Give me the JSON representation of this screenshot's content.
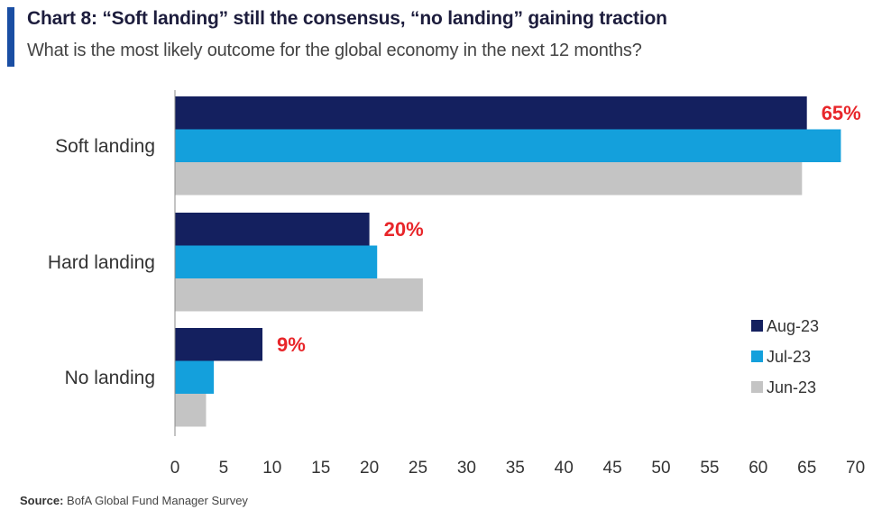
{
  "header": {
    "title": "Chart 8: “Soft landing” still the consensus, “no landing” gaining traction",
    "subtitle": "What is the most likely outcome for the global economy in the next 12 months?"
  },
  "footer": {
    "source_label": "Source:",
    "source_text": "BofA Global Fund Manager Survey"
  },
  "chart_data": {
    "type": "bar",
    "orientation": "horizontal",
    "title": "Chart 8: “Soft landing” still the consensus, “no landing” gaining traction",
    "subtitle": "What is the most likely outcome for the global economy in the next 12 months?",
    "categories": [
      "Soft landing",
      "Hard landing",
      "No landing"
    ],
    "series": [
      {
        "name": "Aug-23",
        "values": [
          65,
          20,
          9
        ],
        "color": "#14205f"
      },
      {
        "name": "Jul-23",
        "values": [
          68.5,
          20.8,
          4
        ],
        "color": "#14a0dc"
      },
      {
        "name": "Jun-23",
        "values": [
          64.5,
          25.5,
          3.2
        ],
        "color": "#c4c4c4"
      }
    ],
    "data_labels": [
      "65%",
      "20%",
      "9%"
    ],
    "data_label_color": "#e8262a",
    "xlim": [
      0,
      70
    ],
    "x_ticks": [
      0,
      5,
      10,
      15,
      20,
      25,
      30,
      35,
      40,
      45,
      50,
      55,
      60,
      65,
      70
    ],
    "grid": false,
    "legend_position": "bottom-right"
  }
}
